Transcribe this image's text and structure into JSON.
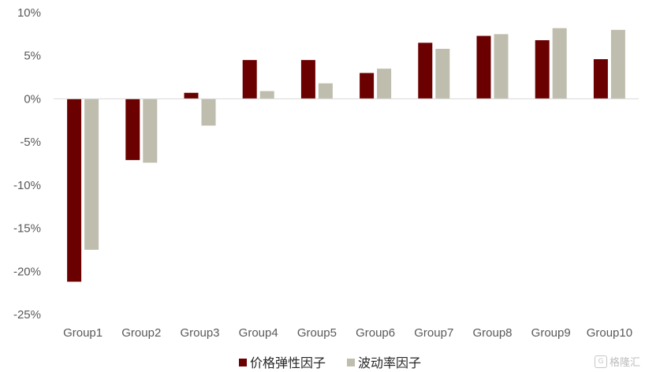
{
  "chart_data": {
    "type": "bar",
    "categories": [
      "Group1",
      "Group2",
      "Group3",
      "Group4",
      "Group5",
      "Group6",
      "Group7",
      "Group8",
      "Group9",
      "Group10"
    ],
    "series": [
      {
        "name": "价格弹性因子",
        "color": "#6b0000",
        "values": [
          -21.2,
          -7.1,
          0.7,
          4.5,
          4.5,
          3.0,
          6.5,
          7.3,
          6.8,
          4.6
        ]
      },
      {
        "name": "波动率因子",
        "color": "#bfbdae",
        "values": [
          -17.5,
          -7.4,
          -3.1,
          0.9,
          1.8,
          3.5,
          5.8,
          7.5,
          8.2,
          8.0
        ]
      }
    ],
    "yticks": [
      "10%",
      "5%",
      "0%",
      "-5%",
      "-10%",
      "-15%",
      "-20%",
      "-25%"
    ],
    "ylim": [
      -25,
      10
    ],
    "grid": false,
    "legend_position": "bottom-center"
  },
  "watermark": {
    "logo": "G",
    "text": "格隆汇"
  }
}
